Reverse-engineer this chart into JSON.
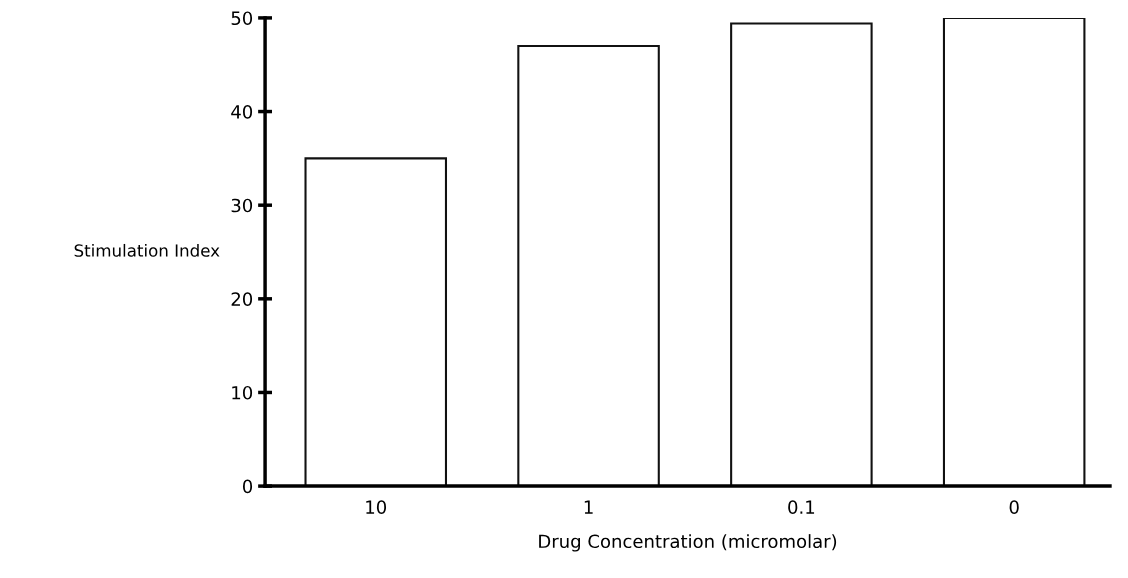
{
  "chart_data": {
    "type": "bar",
    "xlabel": "Drug Concentration (micromolar)",
    "ylabel": "Stimulation Index",
    "categories": [
      "10",
      "1",
      "0.1",
      "0"
    ],
    "series": [
      {
        "color": "#ffffff",
        "values": [
          35,
          47,
          49.4,
          50
        ]
      }
    ],
    "ylim": [
      0,
      50
    ],
    "yticks": [
      0,
      10,
      20,
      30,
      40,
      50
    ],
    "grid": false,
    "legend": false
  }
}
